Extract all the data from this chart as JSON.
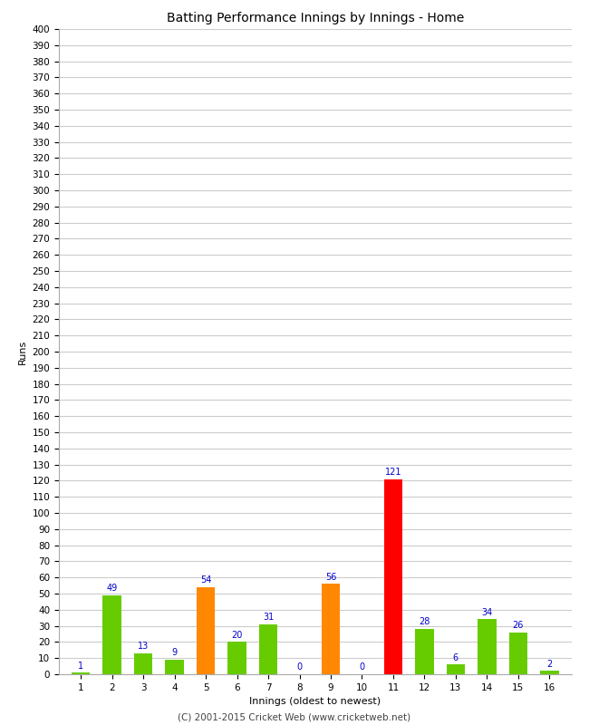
{
  "innings": [
    1,
    2,
    3,
    4,
    5,
    6,
    7,
    8,
    9,
    10,
    11,
    12,
    13,
    14,
    15,
    16
  ],
  "values": [
    1,
    49,
    13,
    9,
    54,
    20,
    31,
    0,
    56,
    0,
    121,
    28,
    6,
    34,
    26,
    2
  ],
  "colors": [
    "#66cc00",
    "#66cc00",
    "#66cc00",
    "#66cc00",
    "#ff8800",
    "#66cc00",
    "#66cc00",
    "#66cc00",
    "#ff8800",
    "#66cc00",
    "#ff0000",
    "#66cc00",
    "#66cc00",
    "#66cc00",
    "#66cc00",
    "#66cc00"
  ],
  "title": "Batting Performance Innings by Innings - Home",
  "xlabel": "Innings (oldest to newest)",
  "ylabel": "Runs",
  "ylim": [
    0,
    400
  ],
  "yticks": [
    0,
    10,
    20,
    30,
    40,
    50,
    60,
    70,
    80,
    90,
    100,
    110,
    120,
    130,
    140,
    150,
    160,
    170,
    180,
    190,
    200,
    210,
    220,
    230,
    240,
    250,
    260,
    270,
    280,
    290,
    300,
    310,
    320,
    330,
    340,
    350,
    360,
    370,
    380,
    390,
    400
  ],
  "label_color": "#0000cc",
  "footer": "(C) 2001-2015 Cricket Web (www.cricketweb.net)",
  "bg_color": "#ffffff",
  "grid_color": "#cccccc",
  "title_fontsize": 10,
  "axis_fontsize": 8,
  "tick_fontsize": 7.5,
  "label_fontsize": 7,
  "footer_fontsize": 7.5
}
